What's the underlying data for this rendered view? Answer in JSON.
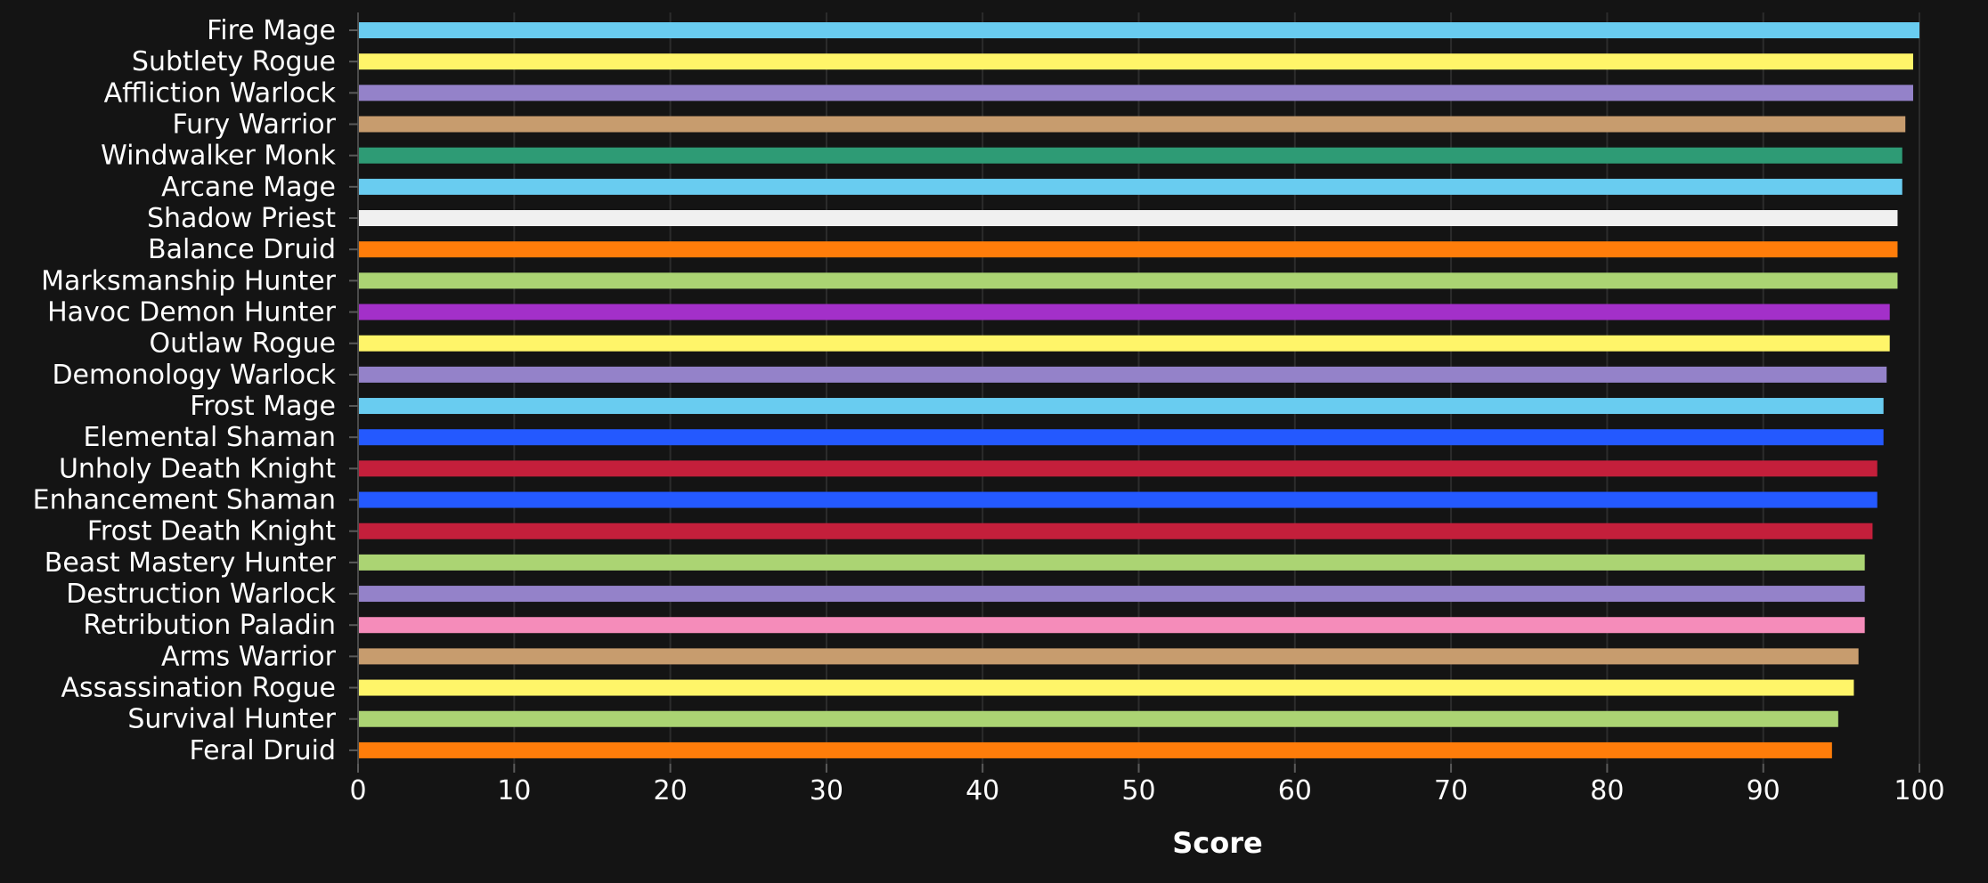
{
  "chart_data": {
    "type": "bar",
    "orientation": "horizontal",
    "title": "",
    "xlabel": "Score",
    "ylabel": "",
    "xlim": [
      0,
      100
    ],
    "xticks": [
      0,
      10,
      20,
      30,
      40,
      50,
      60,
      70,
      80,
      90,
      100
    ],
    "grid": true,
    "legend": "none",
    "categories": [
      "Fire Mage",
      "Subtlety Rogue",
      "Affliction Warlock",
      "Fury Warrior",
      "Windwalker Monk",
      "Arcane Mage",
      "Shadow Priest",
      "Balance Druid",
      "Marksmanship Hunter",
      "Havoc Demon Hunter",
      "Outlaw Rogue",
      "Demonology Warlock",
      "Frost Mage",
      "Elemental Shaman",
      "Unholy Death Knight",
      "Enhancement Shaman",
      "Frost Death Knight",
      "Beast Mastery Hunter",
      "Destruction Warlock",
      "Retribution Paladin",
      "Arms Warrior",
      "Assassination Rogue",
      "Survival Hunter",
      "Feral Druid"
    ],
    "values": [
      100,
      99.6,
      99.6,
      99.1,
      98.9,
      98.9,
      98.6,
      98.6,
      98.6,
      98.1,
      98.1,
      97.9,
      97.7,
      97.7,
      97.3,
      97.3,
      97.0,
      96.5,
      96.5,
      96.5,
      96.1,
      95.8,
      94.8,
      94.4
    ],
    "colors": [
      "#69ccf0",
      "#fff569",
      "#9482c9",
      "#c79c6e",
      "#2e9b75",
      "#69ccf0",
      "#f0f0f0",
      "#ff7d0a",
      "#abd473",
      "#a330c9",
      "#fff569",
      "#9482c9",
      "#69ccf0",
      "#2459ff",
      "#c41f3b",
      "#2459ff",
      "#c41f3b",
      "#abd473",
      "#9482c9",
      "#f58cba",
      "#c79c6e",
      "#fff569",
      "#abd473",
      "#ff7d0a"
    ]
  }
}
